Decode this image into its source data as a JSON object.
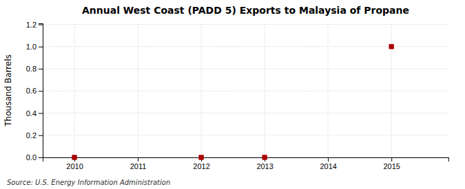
{
  "chart_data": {
    "type": "scatter",
    "title": "Annual West Coast (PADD 5) Exports to Malaysia of Propane",
    "ylabel": "Thousand Barrels",
    "annotations": [
      "Source: U.S. Energy Information Administration"
    ],
    "x": [
      2010,
      2012,
      2013,
      2015
    ],
    "values": [
      0.0,
      0.0,
      0.0,
      1.0
    ],
    "color": "#aa0000",
    "marker": "square",
    "xlim": [
      2009.5,
      2015.9
    ],
    "xticks": [
      2010,
      2011,
      2012,
      2013,
      2014,
      2015
    ],
    "ylim": [
      0.0,
      1.21
    ],
    "yticks": [
      {
        "value": 0.0,
        "label": "0.0"
      },
      0.2,
      0.4,
      0.6,
      0.8,
      {
        "value": 1.0,
        "label": "1.0"
      },
      1.2
    ],
    "grid": true
  }
}
